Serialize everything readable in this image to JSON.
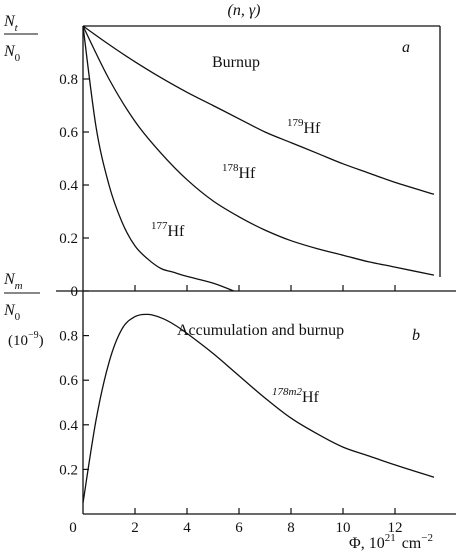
{
  "header": {
    "reaction": "(n, γ)"
  },
  "panel_a": {
    "ylabel_num": "N",
    "ylabel_num_sub": "t",
    "ylabel_den": "N",
    "ylabel_den_sub": "0",
    "title": "Burnup",
    "letter": "a",
    "labels": {
      "hf179_mass": "179",
      "hf179_el": "Hf",
      "hf178_mass": "178",
      "hf178_el": "Hf",
      "hf177_mass": "177",
      "hf177_el": "Hf"
    }
  },
  "panel_b": {
    "ylabel_num": "N",
    "ylabel_num_sub": "m",
    "ylabel_den": "N",
    "ylabel_den_sub": "0",
    "scale": "(10",
    "scale_exp": "−9",
    "scale_close": ")",
    "title": "Accumulation and burnup",
    "letter": "b",
    "labels": {
      "hf178m2_mass": "178m2",
      "hf178m2_el": "Hf"
    }
  },
  "xaxis": {
    "label_main": "Φ, 10",
    "label_exp": "21",
    "label_unit": "cm",
    "label_unit_exp": "−2"
  },
  "chart_data": [
    {
      "type": "line",
      "title": "Burnup",
      "xlabel": "Φ, 10^21 cm^-2",
      "ylabel": "N_t/N_0",
      "xlim": [
        0,
        14
      ],
      "ylim": [
        0,
        1.0
      ],
      "xticks": [
        0,
        2,
        4,
        6,
        8,
        10,
        12
      ],
      "yticks": [
        0,
        0.2,
        0.4,
        0.6,
        0.8
      ],
      "series": [
        {
          "name": "179Hf",
          "x": [
            0,
            1,
            2,
            3,
            4,
            5,
            6,
            7,
            8,
            9,
            10,
            11,
            12,
            13.5
          ],
          "y": [
            1.0,
            0.93,
            0.865,
            0.805,
            0.75,
            0.7,
            0.65,
            0.6,
            0.56,
            0.52,
            0.48,
            0.445,
            0.41,
            0.365
          ]
        },
        {
          "name": "178Hf",
          "x": [
            0,
            1,
            2,
            3,
            4,
            5,
            6,
            7,
            8,
            9,
            10,
            11,
            12,
            13.5
          ],
          "y": [
            1.0,
            0.8,
            0.64,
            0.52,
            0.42,
            0.34,
            0.28,
            0.23,
            0.19,
            0.16,
            0.135,
            0.11,
            0.09,
            0.06
          ]
        },
        {
          "name": "177Hf",
          "x": [
            0,
            0.5,
            1,
            1.5,
            2,
            2.5,
            3,
            3.5,
            4,
            5,
            5.8
          ],
          "y": [
            1.0,
            0.62,
            0.4,
            0.26,
            0.17,
            0.12,
            0.085,
            0.07,
            0.055,
            0.03,
            0.0
          ]
        }
      ]
    },
    {
      "type": "line",
      "title": "Accumulation and burnup",
      "xlabel": "Φ, 10^21 cm^-2",
      "ylabel": "N_m/N_0 (10^-9)",
      "xlim": [
        0,
        14
      ],
      "ylim": [
        0,
        1.0
      ],
      "xticks": [
        0,
        2,
        4,
        6,
        8,
        10,
        12
      ],
      "yticks": [
        0.2,
        0.4,
        0.6,
        0.8
      ],
      "series": [
        {
          "name": "178m2Hf",
          "x": [
            0,
            0.5,
            1,
            1.5,
            2,
            2.5,
            3,
            3.5,
            4,
            5,
            6,
            7,
            8,
            9,
            10,
            11,
            12,
            13.5
          ],
          "y": [
            0.05,
            0.42,
            0.68,
            0.83,
            0.885,
            0.895,
            0.88,
            0.85,
            0.81,
            0.72,
            0.62,
            0.52,
            0.43,
            0.36,
            0.3,
            0.26,
            0.22,
            0.165
          ]
        }
      ]
    }
  ]
}
